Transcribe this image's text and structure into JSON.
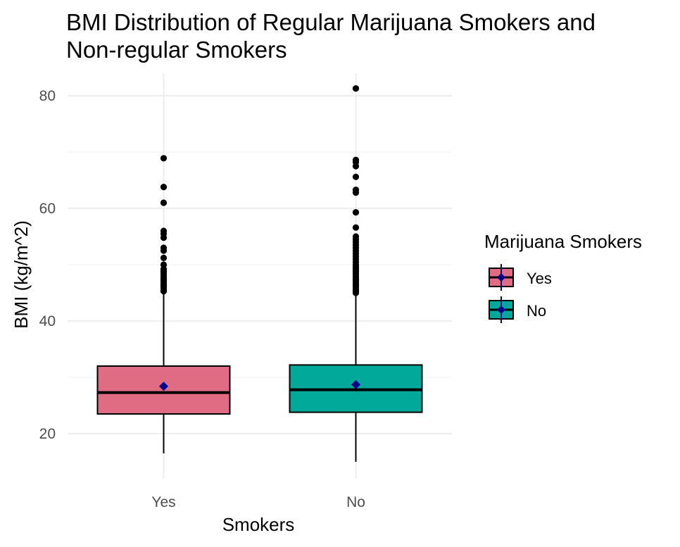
{
  "chart_data": {
    "type": "boxplot",
    "title_lines": [
      "BMI Distribution of Regular Marijuana Smokers and",
      "Non-regular Smokers"
    ],
    "xlabel": "Smokers",
    "ylabel": "BMI (kg/m^2)",
    "ylim": [
      12,
      84
    ],
    "yticks": [
      20,
      40,
      60,
      80
    ],
    "grid": true,
    "legend": {
      "title": "Marijuana Smokers",
      "position": "right",
      "entries": [
        {
          "label": "Yes",
          "color": "#E06C84"
        },
        {
          "label": "No",
          "color": "#00A99A"
        }
      ]
    },
    "mean_marker_color": "#00008B",
    "groups": [
      {
        "category": "Yes",
        "color": "#E06C84",
        "whisker_low": 16.5,
        "q1": 23.5,
        "median": 27.3,
        "q3": 32.0,
        "whisker_high": 45.0,
        "mean": 28.4,
        "outliers": [
          45.3,
          45.6,
          46.0,
          46.3,
          46.6,
          47.0,
          47.3,
          47.6,
          48.0,
          48.4,
          48.8,
          49.2,
          50.0,
          51.2,
          52.5,
          53.0,
          54.8,
          55.5,
          56.0,
          61.0,
          63.8,
          68.9
        ]
      },
      {
        "category": "No",
        "color": "#00A99A",
        "whisker_low": 15.0,
        "q1": 23.8,
        "median": 27.8,
        "q3": 32.2,
        "whisker_high": 44.8,
        "mean": 28.7,
        "outliers": [
          45.0,
          45.3,
          45.6,
          46.0,
          46.3,
          46.6,
          47.0,
          47.3,
          47.6,
          48.0,
          48.4,
          48.8,
          49.2,
          49.6,
          50.0,
          50.5,
          51.0,
          51.5,
          52.0,
          52.5,
          53.0,
          53.5,
          54.0,
          54.5,
          55.0,
          56.6,
          59.3,
          62.8,
          63.3,
          65.6,
          67.5,
          68.2,
          68.6,
          81.3
        ]
      }
    ]
  }
}
